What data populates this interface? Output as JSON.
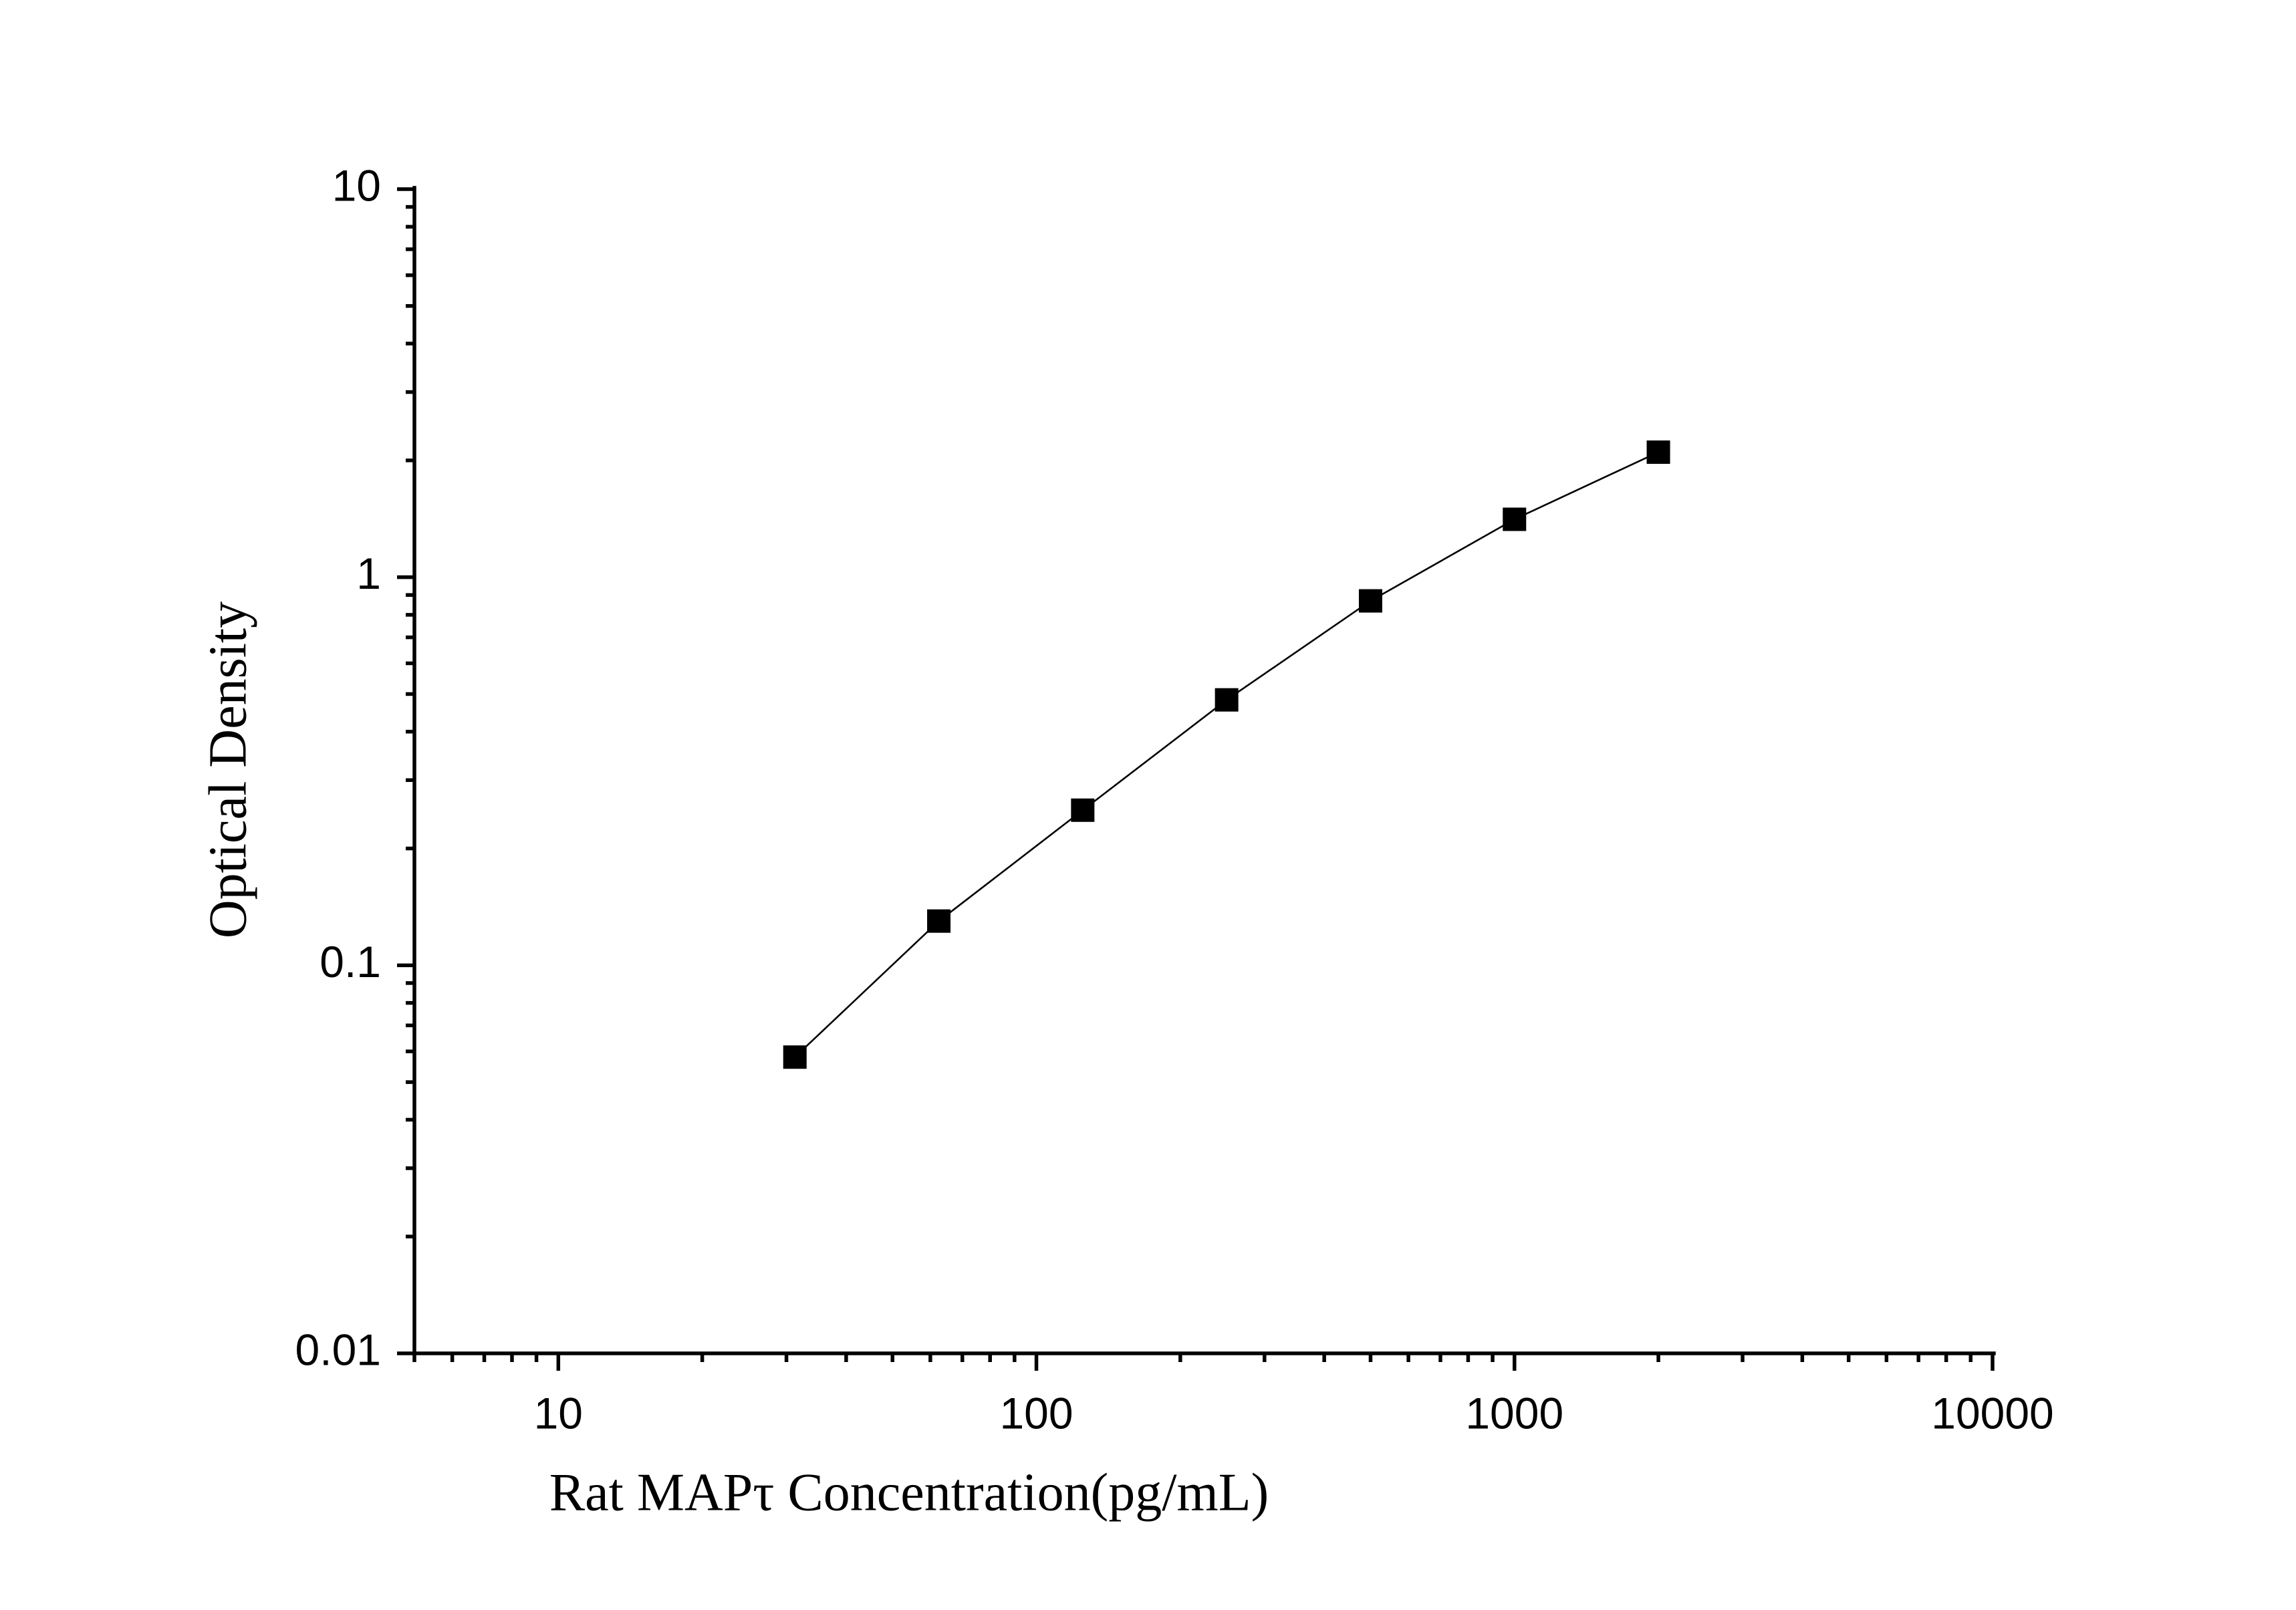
{
  "chart_data": {
    "type": "line",
    "x_label": "Rat MAPτ Concentration(pg/mL)",
    "y_label": "Optical Density",
    "x": [
      31.25,
      62.5,
      125,
      250,
      500,
      1000,
      2000
    ],
    "series": [
      {
        "color": "#000000",
        "marker": "square",
        "values": [
          0.058,
          0.13,
          0.251,
          0.483,
          0.869,
          1.41,
          2.1
        ]
      }
    ],
    "xlog": true,
    "ylog": true,
    "xlim": [
      5,
      10000
    ],
    "ylim": [
      0.01,
      10
    ],
    "xticks": [
      10,
      100,
      1000,
      10000
    ],
    "yticks": [
      0.01,
      0.1,
      1,
      10
    ],
    "grid": false
  }
}
